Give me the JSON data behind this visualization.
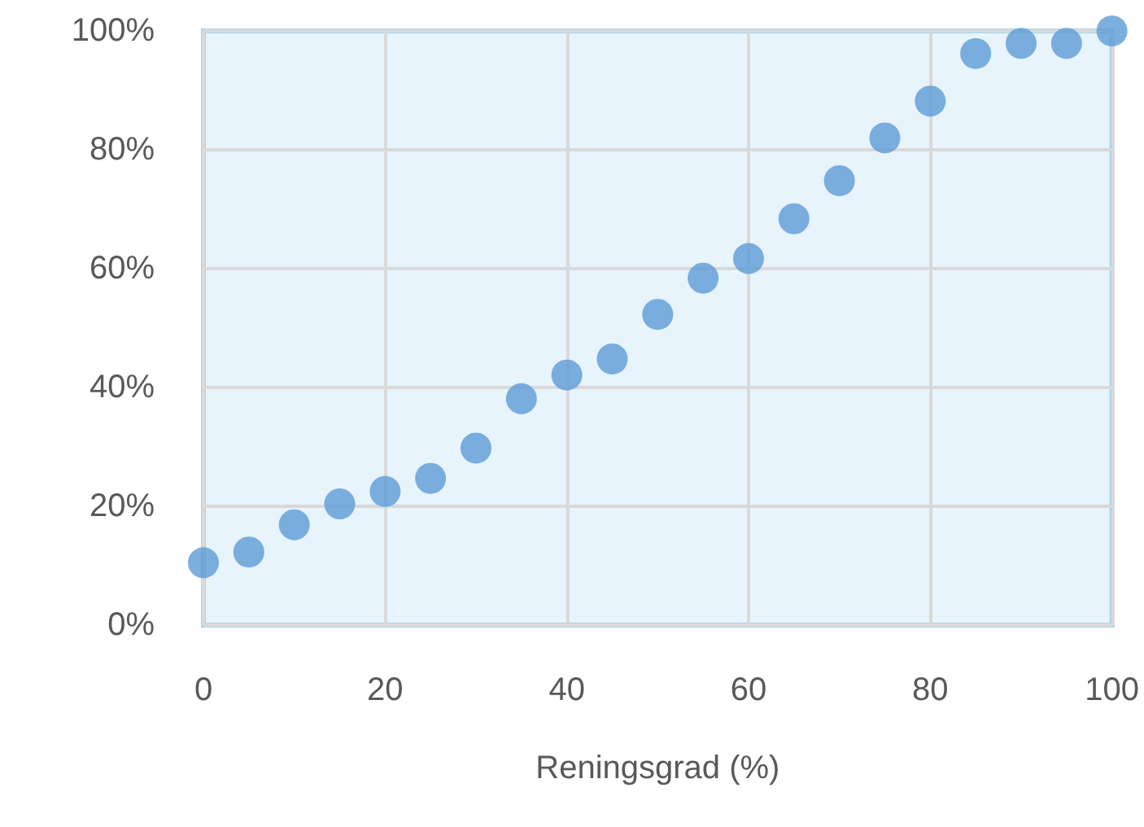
{
  "chart_data": {
    "type": "scatter",
    "xlabel": "Reningsgrad (%)",
    "x": [
      0,
      5,
      10,
      15,
      20,
      25,
      30,
      35,
      40,
      45,
      50,
      55,
      60,
      65,
      70,
      75,
      80,
      85,
      90,
      95,
      100
    ],
    "series": [
      {
        "color": "#5b9bd5",
        "values": [
          10.5,
          12.3,
          16.9,
          20.4,
          22.5,
          24.7,
          29.8,
          38.1,
          42.1,
          44.8,
          52.3,
          58.4,
          61.7,
          68.4,
          74.8,
          82,
          88.2,
          96.2,
          97.9,
          97.9,
          100
        ]
      }
    ],
    "xlim": [
      0,
      100
    ],
    "xticks": [
      0,
      20,
      40,
      60,
      80,
      100
    ],
    "ylim": [
      0,
      100
    ],
    "yticks": [
      {
        "value": 0,
        "label": "0%"
      },
      {
        "value": 20,
        "label": "20%"
      },
      {
        "value": 40,
        "label": "40%"
      },
      {
        "value": 60,
        "label": "60%"
      },
      {
        "value": 80,
        "label": "80%"
      },
      {
        "value": 100,
        "label": "100%"
      }
    ],
    "grid": true,
    "marker": "circle"
  }
}
